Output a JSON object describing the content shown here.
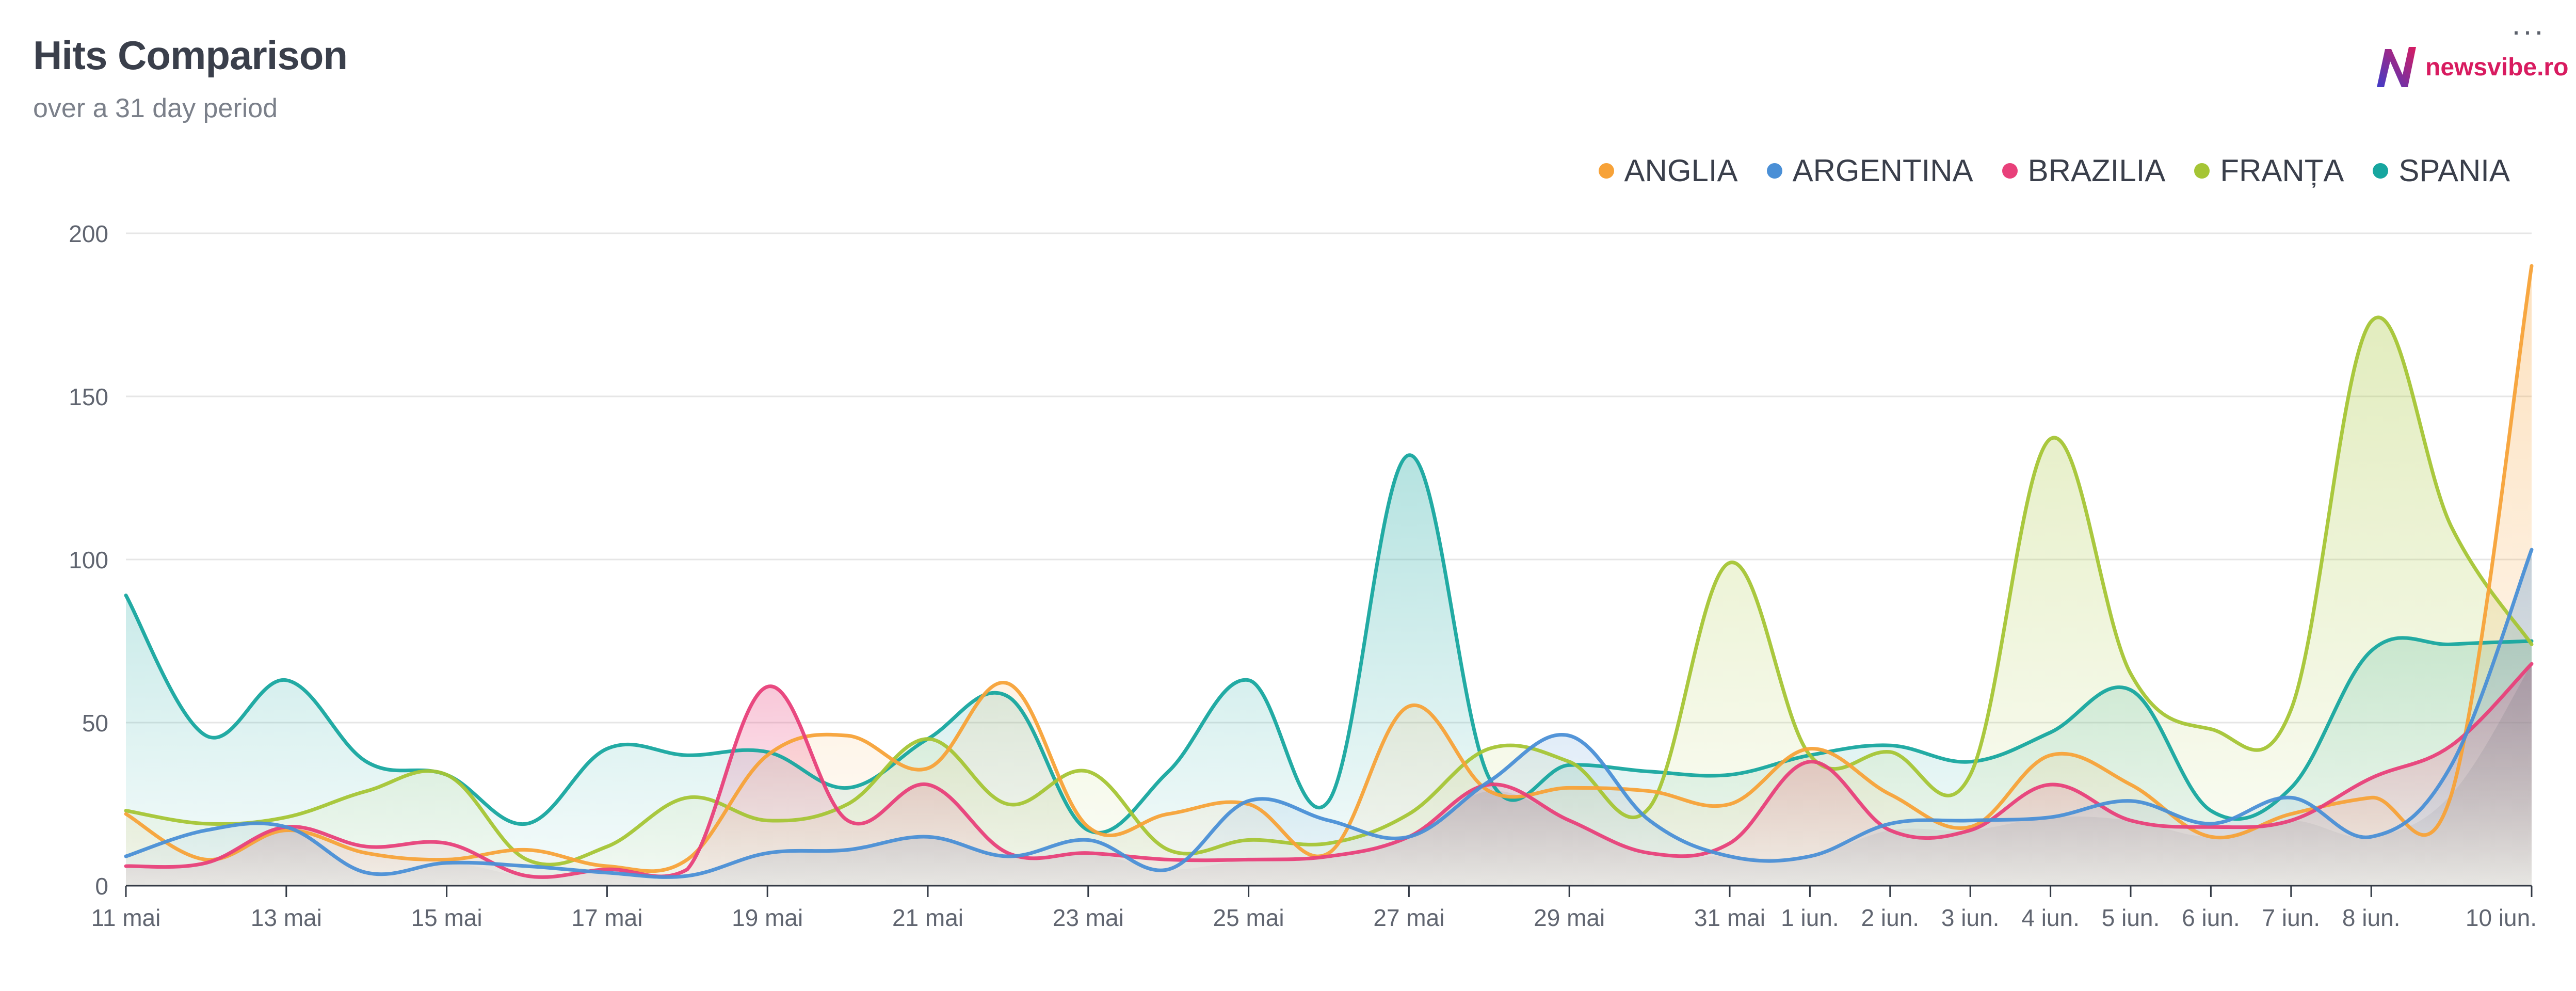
{
  "header": {
    "title": "Hits Comparison",
    "subtitle": "over a 31 day period",
    "logo_text": "newsvibe.ro",
    "menu_icon": "more-dots-icon"
  },
  "colors": {
    "anglia": "#f7a238",
    "argentina": "#4a8fd6",
    "brazilia": "#e8407a",
    "franta": "#a5c535",
    "spania": "#17a69f",
    "logo_n": "#3f3cc9",
    "logo_text": "#d81b60"
  },
  "legend": [
    {
      "label": "ANGLIA",
      "color": "#f7a238"
    },
    {
      "label": "ARGENTINA",
      "color": "#4a8fd6"
    },
    {
      "label": "BRAZILIA",
      "color": "#e8407a"
    },
    {
      "label": "FRANȚA",
      "color": "#a5c535"
    },
    {
      "label": "SPANIA",
      "color": "#17a69f"
    }
  ],
  "chart_data": {
    "type": "area",
    "x": [
      "11 mai",
      "12 mai",
      "13 mai",
      "14 mai",
      "15 mai",
      "16 mai",
      "17 mai",
      "18 mai",
      "19 mai",
      "20 mai",
      "21 mai",
      "22 mai",
      "23 mai",
      "24 mai",
      "25 mai",
      "26 mai",
      "27 mai",
      "28 mai",
      "29 mai",
      "30 mai",
      "31 mai",
      "1 iun.",
      "2 iun.",
      "3 iun.",
      "4 iun.",
      "5 iun.",
      "6 iun.",
      "7 iun.",
      "8 iun.",
      "9 iun.",
      "10 iun."
    ],
    "x_ticks": [
      "11 mai",
      "13 mai",
      "15 mai",
      "17 mai",
      "19 mai",
      "21 mai",
      "23 mai",
      "25 mai",
      "27 mai",
      "29 mai",
      "31 mai",
      "1 iun.",
      "2 iun.",
      "3 iun.",
      "4 iun.",
      "5 iun.",
      "6 iun.",
      "7 iun.",
      "8 iun.",
      "10 iun."
    ],
    "ylim": [
      0,
      200
    ],
    "y_ticks": [
      "0",
      "50",
      "100",
      "150",
      "200"
    ],
    "grid": "horizontal",
    "legend_position": "top-right",
    "series": [
      {
        "name": "ANGLIA",
        "color": "#f7a238",
        "values": [
          22,
          8,
          17,
          10,
          8,
          11,
          6,
          8,
          40,
          46,
          36,
          62,
          18,
          22,
          25,
          10,
          55,
          29,
          30,
          29,
          25,
          42,
          28,
          18,
          40,
          31,
          15,
          22,
          27,
          28,
          190
        ]
      },
      {
        "name": "ARGENTINA",
        "color": "#4a8fd6",
        "values": [
          9,
          17,
          18,
          4,
          7,
          6,
          4,
          3,
          10,
          11,
          15,
          9,
          14,
          5,
          26,
          20,
          15,
          32,
          46,
          20,
          9,
          9,
          19,
          20,
          21,
          26,
          19,
          27,
          15,
          37,
          103
        ]
      },
      {
        "name": "BRAZILIA",
        "color": "#e8407a",
        "values": [
          6,
          7,
          18,
          12,
          13,
          3,
          5,
          5,
          61,
          20,
          31,
          10,
          10,
          8,
          8,
          9,
          15,
          31,
          20,
          10,
          13,
          38,
          17,
          17,
          31,
          20,
          18,
          20,
          33,
          43,
          68
        ]
      },
      {
        "name": "FRANȚA",
        "color": "#a5c535",
        "values": [
          23,
          19,
          21,
          29,
          34,
          8,
          12,
          27,
          20,
          25,
          45,
          25,
          35,
          11,
          14,
          13,
          22,
          42,
          38,
          24,
          99,
          40,
          41,
          34,
          137,
          65,
          48,
          54,
          173,
          110,
          74
        ]
      },
      {
        "name": "SPANIA",
        "color": "#17a69f",
        "values": [
          89,
          46,
          63,
          38,
          34,
          19,
          42,
          40,
          41,
          30,
          45,
          58,
          17,
          35,
          63,
          26,
          132,
          33,
          37,
          35,
          34,
          40,
          43,
          38,
          47,
          60,
          23,
          30,
          72,
          74,
          75
        ]
      }
    ]
  }
}
